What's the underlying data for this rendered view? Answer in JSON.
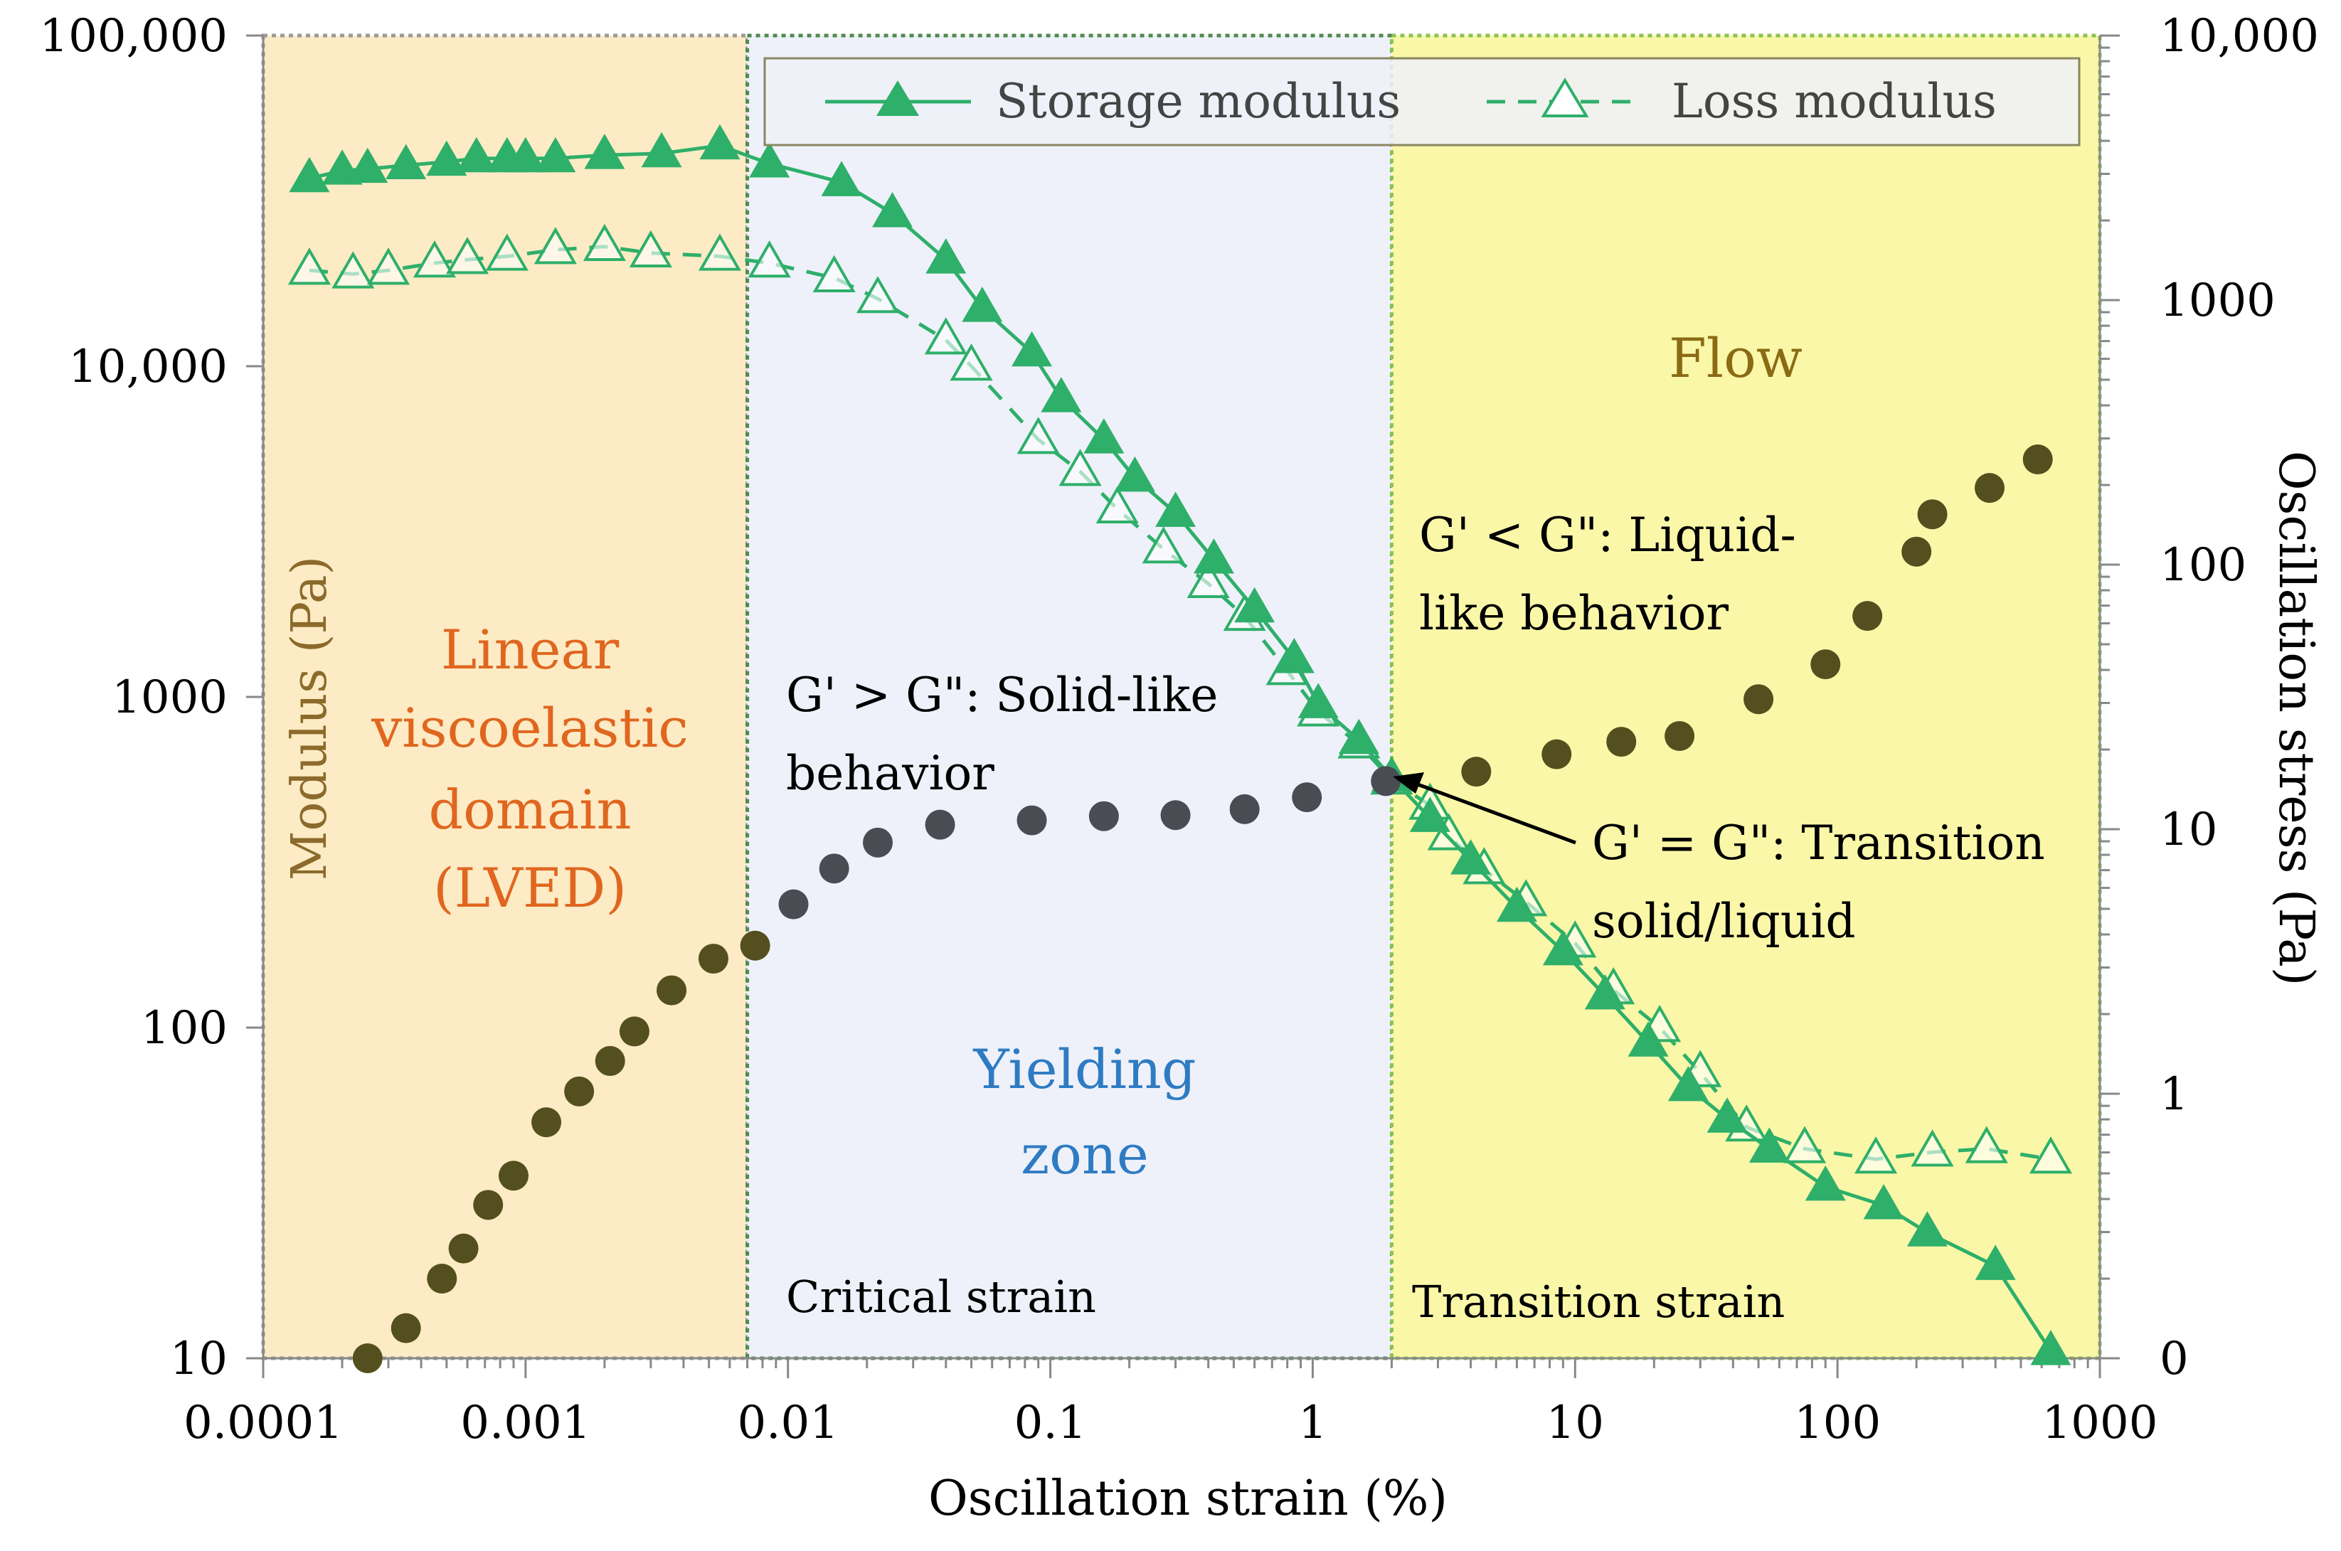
{
  "chart_data": {
    "type": "line",
    "xlabel": "Oscillation strain (%)",
    "ylabel_left": "Modulus (Pa)",
    "ylabel_right": "Oscillation stress (Pa)",
    "x_scale": "log",
    "x_range": [
      0.0001,
      1000
    ],
    "y_left_range": [
      10,
      100000
    ],
    "y_right_range": [
      0.1,
      10000
    ],
    "x_ticks": [
      {
        "v": 0.0001,
        "label": "0.0001"
      },
      {
        "v": 0.001,
        "label": "0.001"
      },
      {
        "v": 0.01,
        "label": "0.01"
      },
      {
        "v": 0.1,
        "label": "0.1"
      },
      {
        "v": 1,
        "label": "1"
      },
      {
        "v": 10,
        "label": "10"
      },
      {
        "v": 100,
        "label": "100"
      },
      {
        "v": 1000,
        "label": "1000"
      }
    ],
    "y_left_ticks": [
      {
        "v": 10,
        "label": "10"
      },
      {
        "v": 100,
        "label": "100"
      },
      {
        "v": 1000,
        "label": "1000"
      },
      {
        "v": 10000,
        "label": "10,000"
      },
      {
        "v": 100000,
        "label": "100,000"
      }
    ],
    "y_right_ticks": [
      {
        "v": 0.1,
        "label": "0"
      },
      {
        "v": 1,
        "label": "1"
      },
      {
        "v": 10,
        "label": "10"
      },
      {
        "v": 100,
        "label": "100"
      },
      {
        "v": 1000,
        "label": "1000"
      },
      {
        "v": 10000,
        "label": "10,000"
      }
    ],
    "regions": [
      {
        "name": "lved",
        "x_from": 0.0001,
        "x_to": 0.007,
        "fill": "#FCEBC4",
        "border": "#999999"
      },
      {
        "name": "yielding",
        "x_from": 0.007,
        "x_to": 2,
        "fill": "#EEF1F9",
        "border": "#4E8A4E"
      },
      {
        "name": "flow",
        "x_from": 2,
        "x_to": 1000,
        "fill": "#FAF7A8",
        "border": "#8BC34A"
      }
    ],
    "region_labels": {
      "lved": [
        "Linear",
        "viscoelastic",
        "domain",
        "(LVED)"
      ],
      "yielding": [
        "Yielding",
        "zone"
      ],
      "flow": "Flow"
    },
    "strain_labels": {
      "critical": "Critical strain",
      "transition": "Transition strain"
    },
    "annotations": {
      "solid": [
        "G' > G\": Solid-like",
        "behavior"
      ],
      "liquid": [
        "G' < G\": Liquid-",
        "like behavior"
      ],
      "transition": [
        "G' = G\": Transition",
        "solid/liquid"
      ]
    },
    "transition_point": {
      "x": 2,
      "y": 570
    },
    "series": [
      {
        "name": "Storage modulus",
        "axis": "left",
        "color": "#2EAF6A",
        "marker": "triangle-filled",
        "line": "solid",
        "points": [
          [
            0.00015,
            37000
          ],
          [
            0.0002,
            39000
          ],
          [
            0.00025,
            39500
          ],
          [
            0.00035,
            40500
          ],
          [
            0.0005,
            41500
          ],
          [
            0.00065,
            42500
          ],
          [
            0.00085,
            42500
          ],
          [
            0.001,
            42500
          ],
          [
            0.0013,
            42500
          ],
          [
            0.002,
            43500
          ],
          [
            0.0033,
            44000
          ],
          [
            0.0055,
            46500
          ],
          [
            0.0085,
            41000
          ],
          [
            0.016,
            36000
          ],
          [
            0.025,
            29000
          ],
          [
            0.04,
            21000
          ],
          [
            0.055,
            15000
          ],
          [
            0.085,
            11000
          ],
          [
            0.11,
            8000
          ],
          [
            0.16,
            6000
          ],
          [
            0.21,
            4600
          ],
          [
            0.3,
            3600
          ],
          [
            0.42,
            2600
          ],
          [
            0.6,
            1850
          ],
          [
            0.85,
            1300
          ],
          [
            1.05,
            950
          ],
          [
            1.5,
            740
          ],
          [
            2,
            570
          ],
          [
            2.8,
            430
          ],
          [
            4,
            320
          ],
          [
            6,
            230
          ],
          [
            9,
            170
          ],
          [
            13,
            125
          ],
          [
            19,
            90
          ],
          [
            27,
            66
          ],
          [
            38,
            53
          ],
          [
            55,
            43
          ],
          [
            90,
            33
          ],
          [
            150,
            29
          ],
          [
            220,
            24
          ],
          [
            400,
            19
          ],
          [
            650,
            10.5
          ]
        ]
      },
      {
        "name": "Loss modulus",
        "axis": "left",
        "color": "#2EAF6A",
        "marker": "triangle-open",
        "line": "dashed",
        "points": [
          [
            0.00015,
            19500
          ],
          [
            0.00022,
            19000
          ],
          [
            0.0003,
            19500
          ],
          [
            0.00045,
            20500
          ],
          [
            0.0006,
            21000
          ],
          [
            0.00085,
            21500
          ],
          [
            0.0013,
            22500
          ],
          [
            0.002,
            23000
          ],
          [
            0.003,
            22000
          ],
          [
            0.0055,
            21500
          ],
          [
            0.0085,
            20500
          ],
          [
            0.015,
            18500
          ],
          [
            0.022,
            16000
          ],
          [
            0.04,
            12000
          ],
          [
            0.05,
            10000
          ],
          [
            0.09,
            6000
          ],
          [
            0.13,
            4800
          ],
          [
            0.18,
            3700
          ],
          [
            0.27,
            2800
          ],
          [
            0.4,
            2200
          ],
          [
            0.55,
            1750
          ],
          [
            0.8,
            1200
          ],
          [
            1.05,
            900
          ],
          [
            1.5,
            720
          ],
          [
            2,
            560
          ],
          [
            2.8,
            470
          ],
          [
            3.3,
            380
          ],
          [
            4.5,
            300
          ],
          [
            6.5,
            240
          ],
          [
            10,
            180
          ],
          [
            14,
            130
          ],
          [
            21,
            100
          ],
          [
            30,
            73
          ],
          [
            45,
            50
          ],
          [
            75,
            43
          ],
          [
            140,
            40
          ],
          [
            230,
            42
          ],
          [
            370,
            43
          ],
          [
            650,
            40
          ]
        ]
      },
      {
        "name": "Oscillation stress",
        "axis": "right",
        "color": "#544F1E",
        "marker": "circle",
        "points": [
          [
            0.00025,
            0.1
          ],
          [
            0.00035,
            0.13
          ],
          [
            0.00048,
            0.2
          ],
          [
            0.00058,
            0.26
          ],
          [
            0.00072,
            0.38
          ],
          [
            0.0009,
            0.49
          ],
          [
            0.0012,
            0.78
          ],
          [
            0.0016,
            1.02
          ],
          [
            0.0021,
            1.33
          ],
          [
            0.0026,
            1.72
          ],
          [
            0.0036,
            2.46
          ],
          [
            0.0052,
            3.24
          ],
          [
            0.0075,
            3.63
          ]
        ],
        "color2": "#4A4C54",
        "points2": [
          [
            0.0105,
            5.2
          ],
          [
            0.015,
            7.1
          ],
          [
            0.022,
            8.9
          ],
          [
            0.038,
            10.4
          ],
          [
            0.085,
            10.8
          ],
          [
            0.16,
            11.2
          ],
          [
            0.3,
            11.3
          ],
          [
            0.55,
            11.9
          ],
          [
            0.95,
            13.2
          ],
          [
            1.9,
            15.2
          ]
        ],
        "points3": [
          [
            4.2,
            16.5
          ],
          [
            8.5,
            19.2
          ],
          [
            15,
            21.4
          ],
          [
            25,
            22.5
          ],
          [
            50,
            31
          ],
          [
            90,
            42
          ],
          [
            130,
            64
          ],
          [
            200,
            112
          ],
          [
            230,
            155
          ],
          [
            380,
            195
          ],
          [
            580,
            250
          ]
        ]
      }
    ]
  }
}
